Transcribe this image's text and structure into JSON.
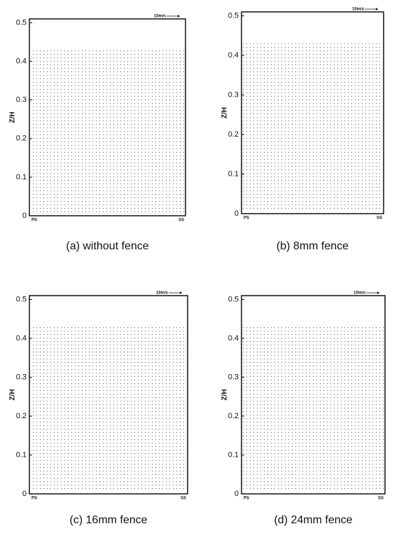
{
  "chart_data": [
    {
      "type": "quiver",
      "caption": "(a) without fence",
      "ylabel": "Z/H",
      "ylim": [
        0,
        0.51
      ],
      "yticks": [
        0,
        0.1,
        0.2,
        0.3,
        0.4,
        0.5
      ],
      "x_start_label": "PS",
      "x_end_label": "SS",
      "reference_label": "10m/s"
    },
    {
      "type": "quiver",
      "caption": "(b) 8mm fence",
      "ylabel": "Z/H",
      "ylim": [
        0,
        0.51
      ],
      "yticks": [
        0,
        0.1,
        0.2,
        0.3,
        0.4,
        0.5
      ],
      "x_start_label": "PS",
      "x_end_label": "SS",
      "reference_label": "10m/s"
    },
    {
      "type": "quiver",
      "caption": "(c) 16mm fence",
      "ylabel": "Z/H",
      "ylim": [
        0,
        0.51
      ],
      "yticks": [
        0,
        0.1,
        0.2,
        0.3,
        0.4,
        0.5
      ],
      "x_start_label": "PS",
      "x_end_label": "SS",
      "reference_label": "10m/s"
    },
    {
      "type": "quiver",
      "caption": "(d) 24mm fence",
      "ylabel": "Z/H",
      "ylim": [
        0,
        0.51
      ],
      "yticks": [
        0,
        0.1,
        0.2,
        0.3,
        0.4,
        0.5
      ],
      "x_start_label": "PS",
      "x_end_label": "SS",
      "reference_label": "10m/s"
    }
  ]
}
